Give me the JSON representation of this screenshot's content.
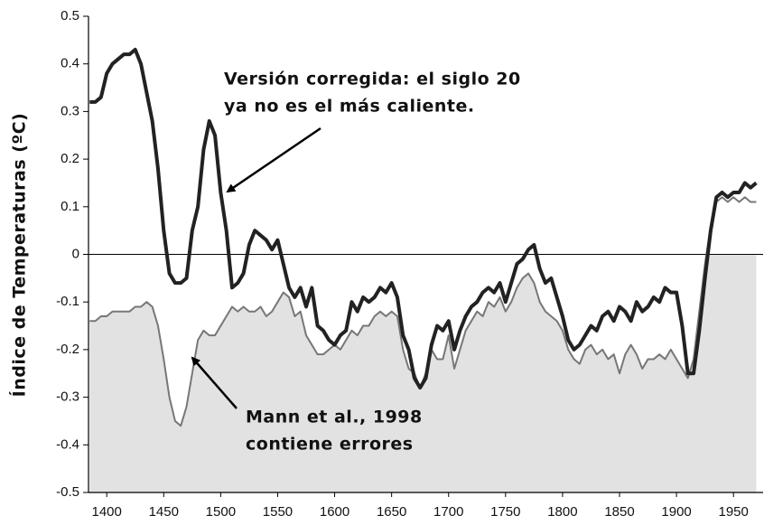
{
  "chart_data": {
    "type": "line",
    "y_label": "Índice de Temperaturas (ºC)",
    "x": [
      1385,
      1390,
      1395,
      1400,
      1405,
      1410,
      1415,
      1420,
      1425,
      1430,
      1435,
      1440,
      1445,
      1450,
      1455,
      1460,
      1465,
      1470,
      1475,
      1480,
      1485,
      1490,
      1495,
      1500,
      1505,
      1510,
      1515,
      1520,
      1525,
      1530,
      1535,
      1540,
      1545,
      1550,
      1555,
      1560,
      1565,
      1570,
      1575,
      1580,
      1585,
      1590,
      1595,
      1600,
      1605,
      1610,
      1615,
      1620,
      1625,
      1630,
      1635,
      1640,
      1645,
      1650,
      1655,
      1660,
      1665,
      1670,
      1675,
      1680,
      1685,
      1690,
      1695,
      1700,
      1705,
      1710,
      1715,
      1720,
      1725,
      1730,
      1735,
      1740,
      1745,
      1750,
      1755,
      1760,
      1765,
      1770,
      1775,
      1780,
      1785,
      1790,
      1795,
      1800,
      1805,
      1810,
      1815,
      1820,
      1825,
      1830,
      1835,
      1840,
      1845,
      1850,
      1855,
      1860,
      1865,
      1870,
      1875,
      1880,
      1885,
      1890,
      1895,
      1900,
      1905,
      1910,
      1915,
      1920,
      1925,
      1930,
      1935,
      1940,
      1945,
      1950,
      1955,
      1960,
      1965,
      1970
    ],
    "series": [
      {
        "color": "#222222",
        "width": 4,
        "values": [
          0.32,
          0.32,
          0.33,
          0.38,
          0.4,
          0.41,
          0.42,
          0.42,
          0.43,
          0.4,
          0.34,
          0.28,
          0.18,
          0.05,
          -0.04,
          -0.06,
          -0.06,
          -0.05,
          0.05,
          0.1,
          0.22,
          0.28,
          0.25,
          0.13,
          0.05,
          -0.07,
          -0.06,
          -0.04,
          0.02,
          0.05,
          0.04,
          0.03,
          0.01,
          0.03,
          -0.02,
          -0.07,
          -0.09,
          -0.07,
          -0.11,
          -0.07,
          -0.15,
          -0.16,
          -0.18,
          -0.19,
          -0.17,
          -0.16,
          -0.1,
          -0.12,
          -0.09,
          -0.1,
          -0.09,
          -0.07,
          -0.08,
          -0.06,
          -0.09,
          -0.17,
          -0.2,
          -0.26,
          -0.28,
          -0.26,
          -0.19,
          -0.15,
          -0.16,
          -0.14,
          -0.2,
          -0.16,
          -0.13,
          -0.11,
          -0.1,
          -0.08,
          -0.07,
          -0.08,
          -0.06,
          -0.1,
          -0.06,
          -0.02,
          -0.01,
          0.01,
          0.02,
          -0.03,
          -0.06,
          -0.05,
          -0.09,
          -0.13,
          -0.18,
          -0.2,
          -0.19,
          -0.17,
          -0.15,
          -0.16,
          -0.13,
          -0.12,
          -0.14,
          -0.11,
          -0.12,
          -0.14,
          -0.1,
          -0.12,
          -0.11,
          -0.09,
          -0.1,
          -0.07,
          -0.08,
          -0.08,
          -0.15,
          -0.25,
          -0.25,
          -0.16,
          -0.05,
          0.05,
          0.12,
          0.13,
          0.12,
          0.13,
          0.13,
          0.15,
          0.14,
          0.15
        ]
      },
      {
        "color": "#777777",
        "width": 2,
        "fill": "#e2e2e2",
        "values": [
          -0.14,
          -0.14,
          -0.13,
          -0.13,
          -0.12,
          -0.12,
          -0.12,
          -0.12,
          -0.11,
          -0.11,
          -0.1,
          -0.11,
          -0.15,
          -0.22,
          -0.3,
          -0.35,
          -0.36,
          -0.32,
          -0.25,
          -0.18,
          -0.16,
          -0.17,
          -0.17,
          -0.15,
          -0.13,
          -0.11,
          -0.12,
          -0.11,
          -0.12,
          -0.12,
          -0.11,
          -0.13,
          -0.12,
          -0.1,
          -0.08,
          -0.09,
          -0.13,
          -0.12,
          -0.17,
          -0.19,
          -0.21,
          -0.21,
          -0.2,
          -0.19,
          -0.2,
          -0.18,
          -0.16,
          -0.17,
          -0.15,
          -0.15,
          -0.13,
          -0.12,
          -0.13,
          -0.12,
          -0.13,
          -0.2,
          -0.24,
          -0.25,
          -0.28,
          -0.25,
          -0.2,
          -0.22,
          -0.22,
          -0.17,
          -0.24,
          -0.2,
          -0.16,
          -0.14,
          -0.12,
          -0.13,
          -0.1,
          -0.11,
          -0.09,
          -0.12,
          -0.1,
          -0.07,
          -0.05,
          -0.04,
          -0.06,
          -0.1,
          -0.12,
          -0.13,
          -0.14,
          -0.16,
          -0.2,
          -0.22,
          -0.23,
          -0.2,
          -0.19,
          -0.21,
          -0.2,
          -0.22,
          -0.21,
          -0.25,
          -0.21,
          -0.19,
          -0.21,
          -0.24,
          -0.22,
          -0.22,
          -0.21,
          -0.22,
          -0.2,
          -0.22,
          -0.24,
          -0.26,
          -0.22,
          -0.12,
          -0.02,
          0.06,
          0.11,
          0.12,
          0.11,
          0.12,
          0.11,
          0.12,
          0.11,
          0.11
        ]
      }
    ],
    "xlim": [
      1384,
      1976
    ],
    "xticks": [
      1400,
      1450,
      1500,
      1550,
      1600,
      1650,
      1700,
      1750,
      1800,
      1850,
      1900,
      1950
    ],
    "ylim": [
      -0.5,
      0.5
    ],
    "yticks": [
      0.5,
      0.4,
      0.3,
      0.2,
      0.1,
      0,
      -0.1,
      -0.2,
      -0.3,
      -0.4,
      -0.5
    ],
    "annotations": [
      {
        "lines": [
          "Versión corregida: el siglo 20",
          "ya no es el más caliente."
        ]
      },
      {
        "lines": [
          "Mann et al., 1998",
          "contiene errores"
        ]
      }
    ]
  }
}
